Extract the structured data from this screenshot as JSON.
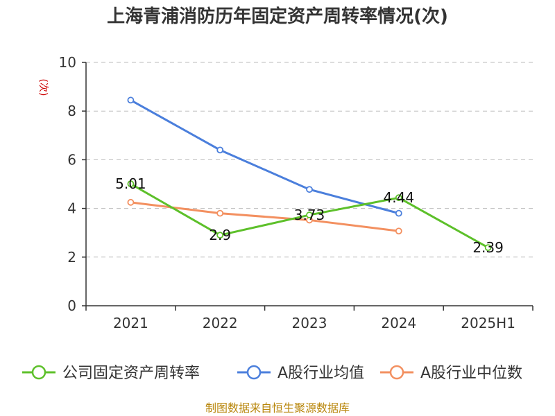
{
  "chart_data": {
    "type": "line",
    "title": "上海青浦消防历年固定资产周转率情况(次)",
    "ylabel": "(次)",
    "xlabel": "",
    "categories": [
      "2021",
      "2022",
      "2023",
      "2024",
      "2025H1"
    ],
    "ylim": [
      0,
      10
    ],
    "yticks": [
      0,
      2,
      4,
      6,
      8,
      10
    ],
    "grid": true,
    "legend_position": "bottom",
    "series": [
      {
        "name": "公司固定资产周转率",
        "color": "#5dc02a",
        "values": [
          5.01,
          2.9,
          3.73,
          4.44,
          2.39
        ],
        "labels": [
          "5.01",
          "2.9",
          "3.73",
          "4.44",
          "2.39"
        ]
      },
      {
        "name": "A股行业均值",
        "color": "#4b7fdc",
        "values": [
          8.45,
          6.4,
          4.78,
          3.8,
          null
        ]
      },
      {
        "name": "A股行业中位数",
        "color": "#f39060",
        "values": [
          4.25,
          3.8,
          3.52,
          3.07,
          null
        ]
      }
    ],
    "source": "制图数据来自恒生聚源数据库"
  }
}
